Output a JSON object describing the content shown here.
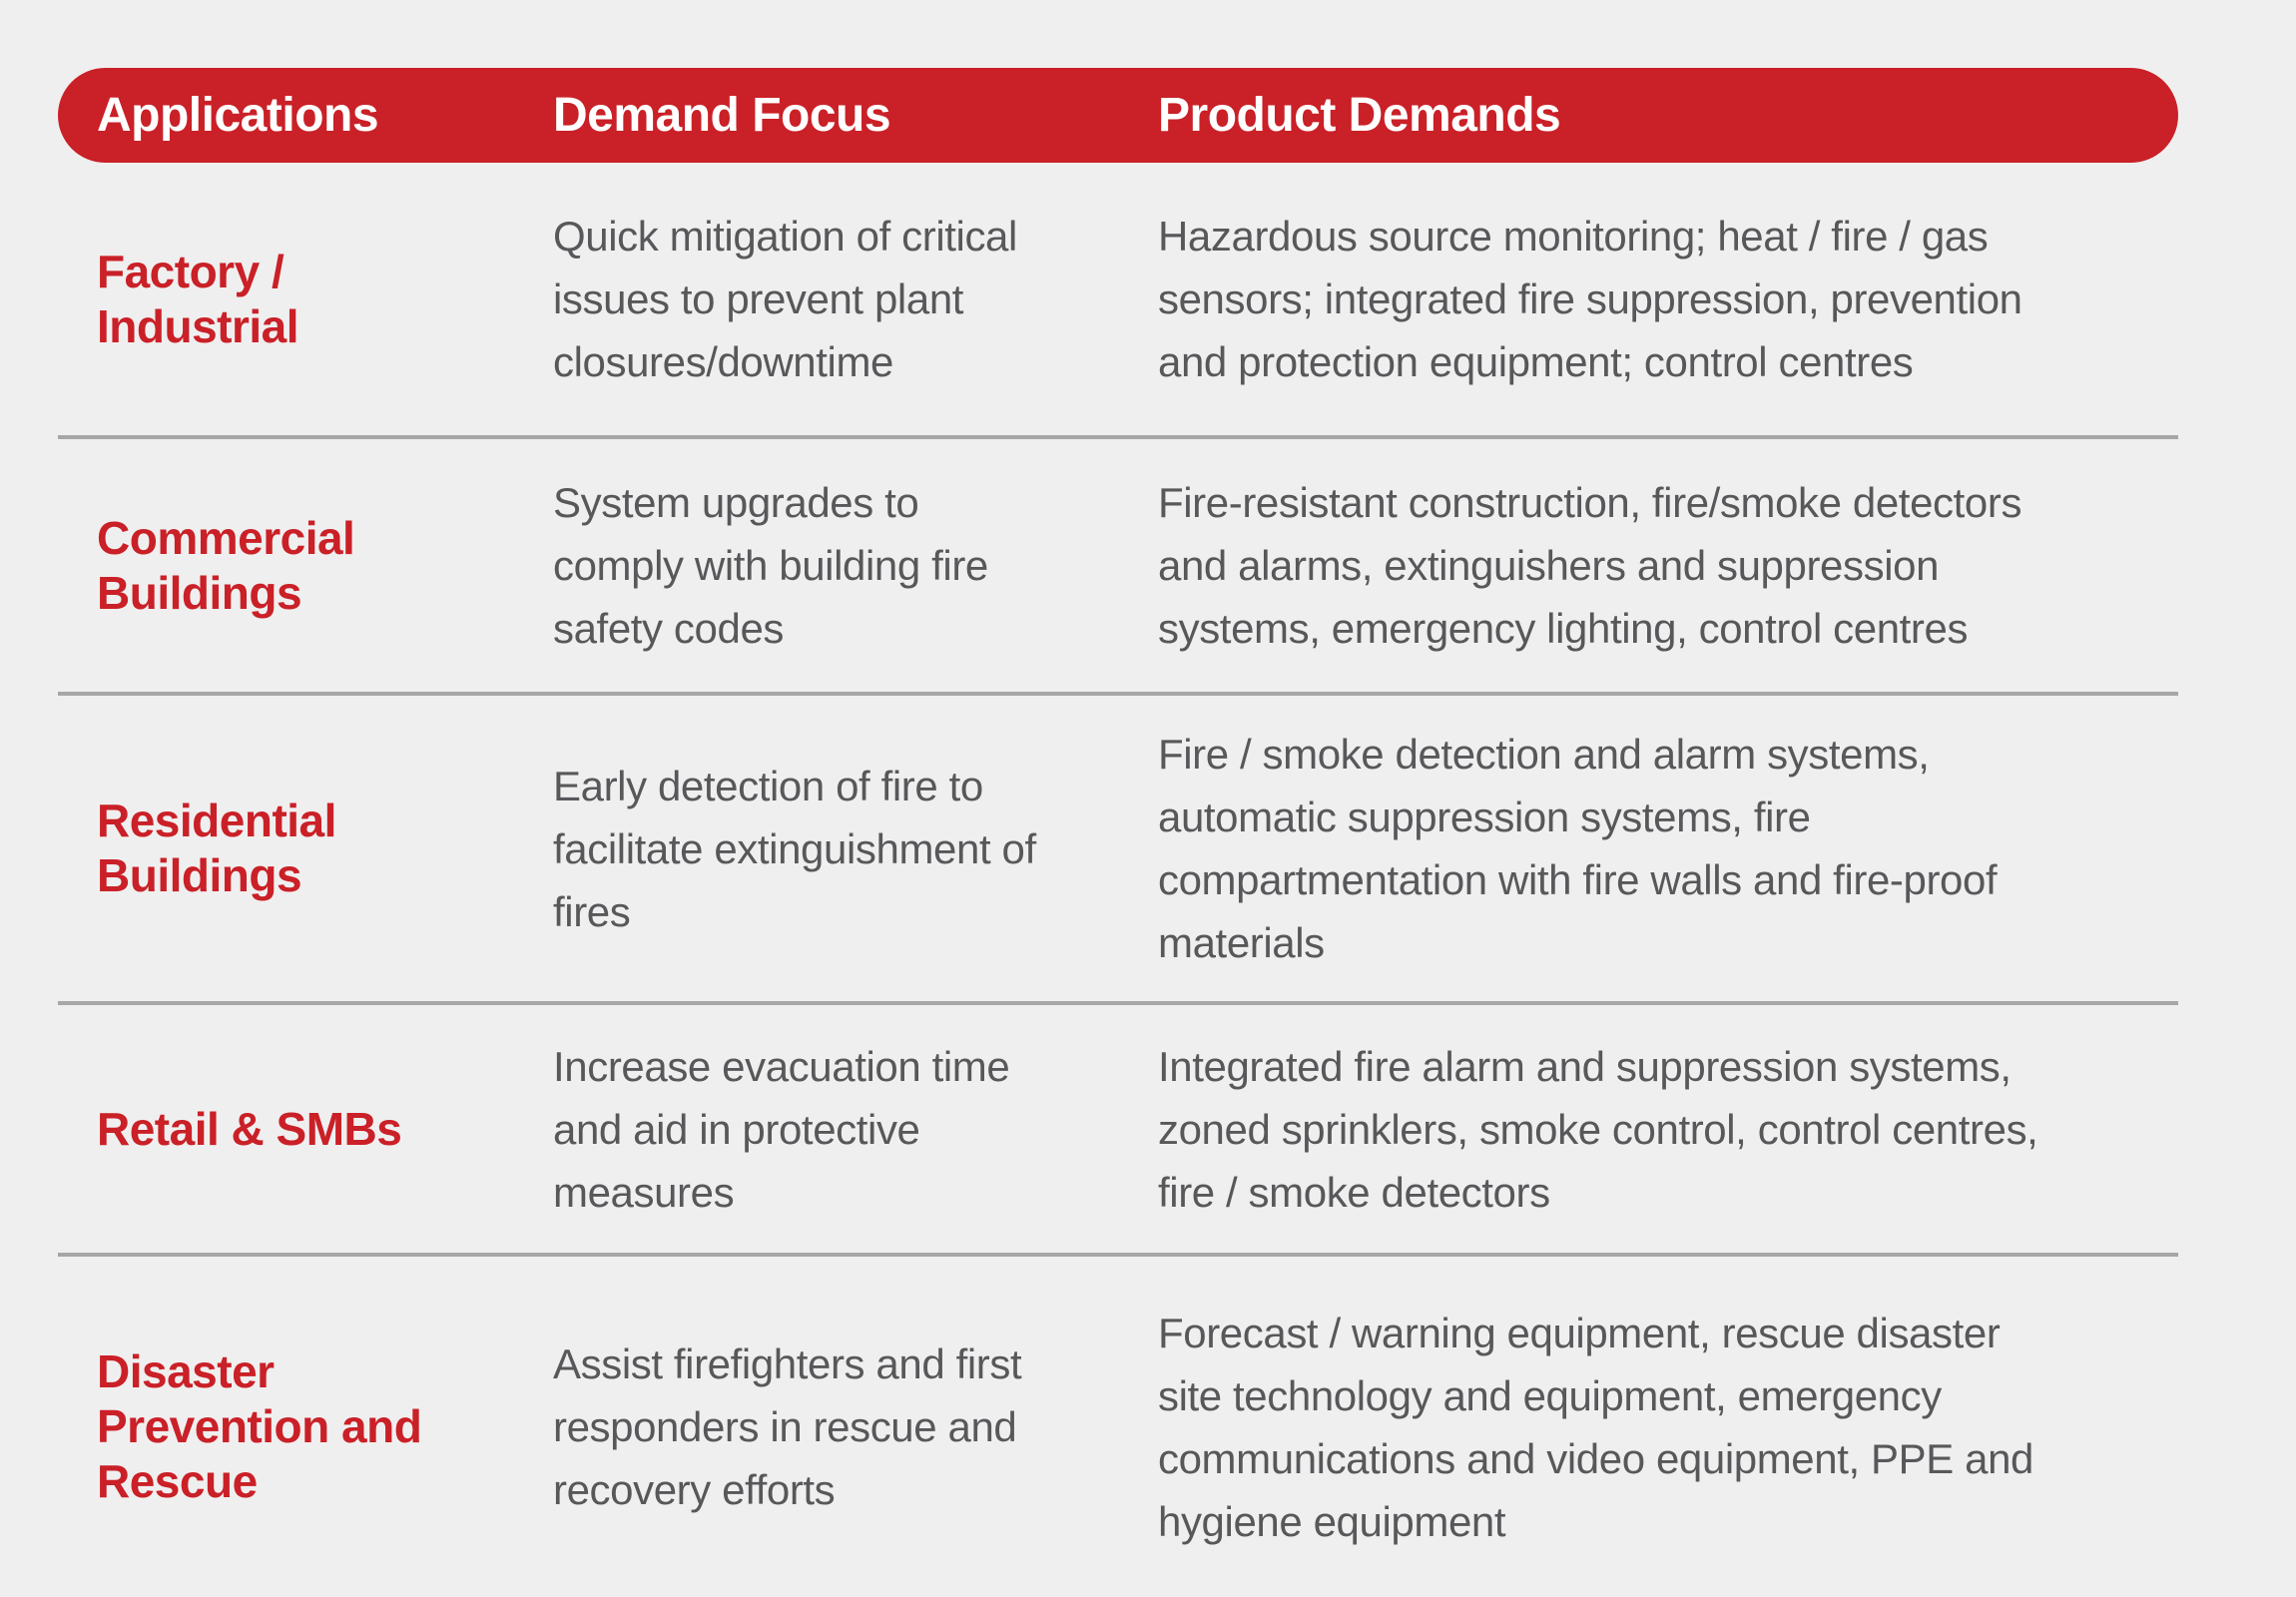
{
  "accent_color": "#CA2027",
  "divider_color": "#A6A6A6",
  "background_color": "#F0EFEF",
  "body_text_color": "#58585B",
  "table": {
    "headers": {
      "applications": "Applications",
      "demand_focus": "Demand Focus",
      "product_demands": "Product Demands"
    },
    "rows": [
      {
        "application": "Factory /\nIndustrial",
        "demand_focus": "Quick mitigation of critical\nissues to prevent plant\nclosures/downtime",
        "product_demands": "Hazardous source monitoring; heat / fire / gas\nsensors; integrated fire suppression, prevention\nand protection equipment; control centres"
      },
      {
        "application": "Commercial\nBuildings",
        "demand_focus": "System upgrades to\ncomply with building fire\nsafety codes",
        "product_demands": "Fire-resistant construction, fire/smoke detectors\nand alarms, extinguishers and suppression\nsystems, emergency lighting, control centres"
      },
      {
        "application": "Residential\nBuildings",
        "demand_focus": "Early detection of fire to\nfacilitate extinguishment of\nfires",
        "product_demands": "Fire / smoke detection and alarm systems,\nautomatic suppression systems, fire\ncompartmentation with fire walls and fire-proof\nmaterials"
      },
      {
        "application": "Retail & SMBs",
        "demand_focus": "Increase evacuation time\nand aid in protective\nmeasures",
        "product_demands": "Integrated fire alarm and suppression systems,\nzoned sprinklers, smoke control, control centres,\nfire / smoke detectors"
      },
      {
        "application": "Disaster\nPrevention and\nRescue",
        "demand_focus": "Assist firefighters and first\nresponders in rescue and\nrecovery efforts",
        "product_demands": "Forecast / warning equipment, rescue disaster\nsite technology and equipment, emergency\ncommunications and video equipment, PPE and\nhygiene equipment"
      }
    ]
  },
  "chart_data": {
    "type": "table",
    "title": "",
    "columns": [
      "Applications",
      "Demand Focus",
      "Product Demands"
    ],
    "rows": [
      [
        "Factory / Industrial",
        "Quick mitigation of critical issues to prevent plant closures/downtime",
        "Hazardous source monitoring; heat / fire / gas sensors; integrated fire suppression, prevention and protection equipment; control centres"
      ],
      [
        "Commercial Buildings",
        "System upgrades to comply with building fire safety codes",
        "Fire-resistant construction, fire/smoke detectors and alarms, extinguishers and suppression systems, emergency lighting, control centres"
      ],
      [
        "Residential Buildings",
        "Early detection of fire to facilitate extinguishment of fires",
        "Fire / smoke detection and alarm systems, automatic suppression systems, fire compartmentation with fire walls and fire-proof materials"
      ],
      [
        "Retail & SMBs",
        "Increase evacuation time and aid in protective measures",
        "Integrated fire alarm and suppression systems, zoned sprinklers, smoke control, control centres, fire / smoke detectors"
      ],
      [
        "Disaster Prevention and Rescue",
        "Assist firefighters and first responders in rescue and recovery efforts",
        "Forecast / warning equipment, rescue disaster site technology and equipment, emergency communications and video equipment, PPE and hygiene equipment"
      ]
    ],
    "layout_hints": {
      "header_style": "red pill bar",
      "row_dividers": true,
      "grid": "horizontal only"
    }
  }
}
